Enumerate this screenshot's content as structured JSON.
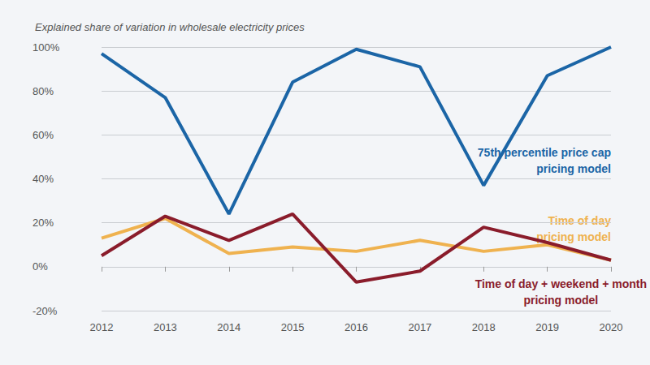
{
  "chart_data": {
    "type": "line",
    "title": "Explained share of variation in wholesale electricity prices",
    "categories": [
      "2012",
      "2013",
      "2014",
      "2015",
      "2016",
      "2017",
      "2018",
      "2019",
      "2020"
    ],
    "series": [
      {
        "name": "75th percentile price cap pricing model",
        "color": "#1b65a6",
        "values": [
          97,
          77,
          24,
          84,
          99,
          91,
          37,
          87,
          100
        ]
      },
      {
        "name": "Time of day pricing model",
        "color": "#efb24f",
        "values": [
          13,
          22,
          6,
          9,
          7,
          12,
          7,
          10,
          3
        ]
      },
      {
        "name": "Time of day + weekend + month pricing model",
        "color": "#8a1c2b",
        "values": [
          5,
          23,
          12,
          24,
          -7,
          -2,
          18,
          11,
          3
        ]
      }
    ],
    "ylim": [
      -20,
      100
    ],
    "yticks": [
      {
        "value": -20,
        "label": "-20%"
      },
      {
        "value": 0,
        "label": "0%"
      },
      {
        "value": 20,
        "label": "20%"
      },
      {
        "value": 40,
        "label": "40%"
      },
      {
        "value": 60,
        "label": "60%"
      },
      {
        "value": 80,
        "label": "80%"
      },
      {
        "value": 100,
        "label": "100%"
      }
    ],
    "grid": true
  }
}
